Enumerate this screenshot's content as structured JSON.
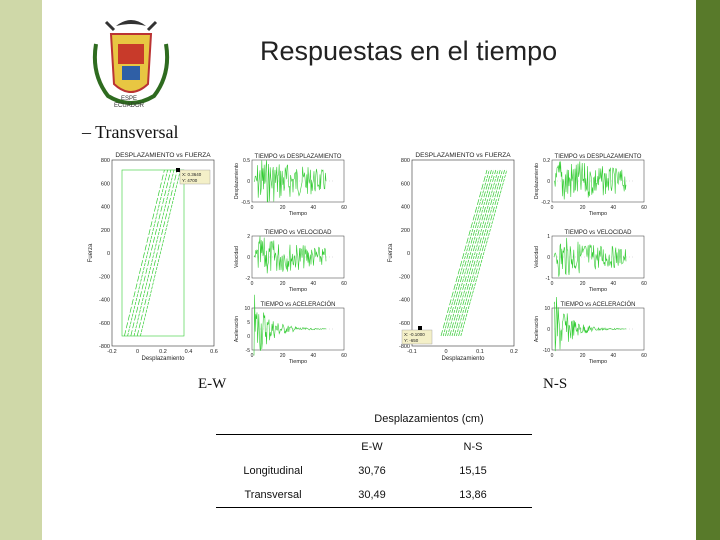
{
  "slide": {
    "title": "Respuestas en el tiempo",
    "bullet": "– Transversal",
    "crest_text": "ESPE\nECUADOR"
  },
  "plots": {
    "left": {
      "hysteresis_title": "DESPLAZAMIENTO vs FUERZA",
      "yaxis_label": "Fuerza",
      "xaxis_label": "Desplazamiento",
      "y_ticks": [
        "800",
        "600",
        "400",
        "200",
        "0",
        "-200",
        "-400",
        "-600",
        "-800"
      ],
      "x_ticks": [
        "-0.2",
        "0",
        "0.2",
        "0.4",
        "0.6"
      ],
      "tooltip": [
        "X: 0.3640",
        "Y: 4700"
      ],
      "series1_title": "TIEMPO vs DESPLAZAMIENTO",
      "series1_ylabel": "Desplazamiento",
      "series1_yticks": [
        "0.5",
        "0",
        "-0.5"
      ],
      "series2_title": "TIEMPO vs VELOCIDAD",
      "series2_ylabel": "Velocidad",
      "series2_yticks": [
        "2",
        "0",
        "-2"
      ],
      "series3_title": "TIEMPO vs ACELERACIÓN",
      "series3_ylabel": "Aceleración",
      "series3_yticks": [
        "10",
        "5",
        "0",
        "-5"
      ],
      "time_ticks": [
        "0",
        "20",
        "40",
        "60"
      ],
      "time_label": "Tiempo"
    },
    "right": {
      "hysteresis_title": "DESPLAZAMIENTO vs FUERZA",
      "yaxis_label": "Fuerza",
      "xaxis_label": "Desplazamiento",
      "y_ticks": [
        "800",
        "600",
        "400",
        "200",
        "0",
        "-200",
        "-400",
        "-600",
        "-800"
      ],
      "x_ticks": [
        "-0.1",
        "0",
        "0.1",
        "0.2"
      ],
      "tooltip": [
        "X: -0.1000",
        "Y: -650"
      ],
      "series1_title": "TIEMPO vs DESPLAZAMIENTO",
      "series1_ylabel": "Desplazamiento",
      "series1_yticks": [
        "0.2",
        "0",
        "-0.2"
      ],
      "series2_title": "TIEMPO vs VELOCIDAD",
      "series2_ylabel": "Velocidad",
      "series2_yticks": [
        "1",
        "0",
        "-1"
      ],
      "series3_title": "TIEMPO vs ACELERACIÓN",
      "series3_ylabel": "Aceleración",
      "series3_yticks": [
        "10",
        "0",
        "-10"
      ],
      "time_ticks": [
        "0",
        "20",
        "40",
        "60"
      ],
      "time_label": "Tiempo"
    }
  },
  "labels": {
    "ew": "E-W",
    "ns": "N-S"
  },
  "table": {
    "caption": "Desplazamientos (cm)",
    "headers": [
      "",
      "E-W",
      "N-S"
    ],
    "rows": [
      [
        "Longitudinal",
        "30,76",
        "15,15"
      ],
      [
        "Transversal",
        "30,49",
        "13,86"
      ]
    ]
  },
  "colors": {
    "trace": "#33cc33",
    "right_bar": "#587a2a",
    "left_bar": "#cfd8a8"
  }
}
